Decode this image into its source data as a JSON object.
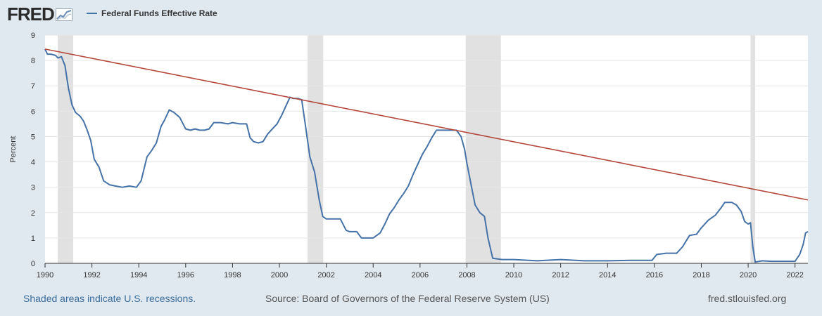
{
  "header": {
    "logo_text": "FRED",
    "logo_icon": "chart-line-icon"
  },
  "legend": {
    "series_label": "Federal Funds Effective Rate",
    "series_color": "#4572a7"
  },
  "footer": {
    "recession_note": "Shaded areas indicate U.S. recessions.",
    "source": "Source: Board of Governors of the Federal Reserve System (US)",
    "site": "fred.stlouisfed.org"
  },
  "colors": {
    "background": "#e1e9f0",
    "plot_background": "#ffffff",
    "recession_shade": "#e1e1e1",
    "series": "#4572a7",
    "trendline": "#b5473c",
    "gridline": "#e6e6e6"
  },
  "chart_data": {
    "type": "line",
    "title": "",
    "xlabel": "",
    "ylabel": "Percent",
    "xlim": [
      1990.0,
      2022.55
    ],
    "ylim": [
      0,
      9
    ],
    "yticks": [
      0,
      1,
      2,
      3,
      4,
      5,
      6,
      7,
      8,
      9
    ],
    "xticks": [
      1990,
      1992,
      1994,
      1996,
      1998,
      2000,
      2002,
      2004,
      2006,
      2008,
      2010,
      2012,
      2014,
      2016,
      2018,
      2020,
      2022
    ],
    "grid": "horizontal",
    "legend_position": "top-left",
    "recessions": [
      [
        1990.54,
        1991.2
      ],
      [
        2001.2,
        2001.87
      ],
      [
        2007.95,
        2009.45
      ],
      [
        2020.1,
        2020.3
      ]
    ],
    "trendline": {
      "x": [
        1990.0,
        2022.55
      ],
      "y": [
        8.45,
        2.5
      ]
    },
    "series": [
      {
        "name": "Federal Funds Effective Rate",
        "x": [
          1990.0,
          1990.1,
          1990.25,
          1990.45,
          1990.55,
          1990.7,
          1990.85,
          1991.0,
          1991.15,
          1991.3,
          1991.5,
          1991.65,
          1991.8,
          1991.95,
          1992.1,
          1992.3,
          1992.5,
          1992.75,
          1993.0,
          1993.3,
          1993.6,
          1993.9,
          1994.1,
          1994.35,
          1994.55,
          1994.75,
          1994.95,
          1995.1,
          1995.3,
          1995.5,
          1995.75,
          1996.0,
          1996.2,
          1996.4,
          1996.6,
          1996.8,
          1997.0,
          1997.2,
          1997.5,
          1997.8,
          1998.0,
          1998.3,
          1998.6,
          1998.75,
          1998.9,
          1999.1,
          1999.3,
          1999.5,
          1999.7,
          1999.9,
          2000.1,
          2000.3,
          2000.45,
          2000.6,
          2000.8,
          2000.95,
          2001.1,
          2001.3,
          2001.5,
          2001.7,
          2001.85,
          2002.0,
          2002.3,
          2002.6,
          2002.85,
          2003.0,
          2003.3,
          2003.5,
          2003.7,
          2004.0,
          2004.3,
          2004.5,
          2004.7,
          2004.9,
          2005.1,
          2005.3,
          2005.5,
          2005.7,
          2005.9,
          2006.1,
          2006.3,
          2006.5,
          2006.7,
          2007.0,
          2007.3,
          2007.55,
          2007.75,
          2007.9,
          2008.0,
          2008.2,
          2008.35,
          2008.55,
          2008.75,
          2008.9,
          2009.1,
          2009.5,
          2010.0,
          2011.0,
          2012.0,
          2013.0,
          2014.0,
          2015.0,
          2015.9,
          2016.1,
          2016.5,
          2016.95,
          2017.2,
          2017.5,
          2017.8,
          2018.0,
          2018.3,
          2018.6,
          2018.85,
          2019.0,
          2019.3,
          2019.5,
          2019.7,
          2019.85,
          2020.0,
          2020.1,
          2020.2,
          2020.3,
          2020.6,
          2021.0,
          2021.5,
          2022.0,
          2022.2,
          2022.35,
          2022.45,
          2022.55
        ],
        "y": [
          8.45,
          8.25,
          8.25,
          8.2,
          8.1,
          8.15,
          7.8,
          6.9,
          6.25,
          5.95,
          5.8,
          5.6,
          5.25,
          4.85,
          4.1,
          3.8,
          3.25,
          3.1,
          3.05,
          3.0,
          3.05,
          3.0,
          3.25,
          4.2,
          4.45,
          4.75,
          5.4,
          5.65,
          6.05,
          5.95,
          5.75,
          5.3,
          5.25,
          5.3,
          5.25,
          5.25,
          5.3,
          5.55,
          5.55,
          5.5,
          5.55,
          5.5,
          5.5,
          4.95,
          4.8,
          4.75,
          4.8,
          5.1,
          5.3,
          5.5,
          5.85,
          6.25,
          6.55,
          6.5,
          6.5,
          6.45,
          5.5,
          4.2,
          3.6,
          2.5,
          1.85,
          1.75,
          1.75,
          1.75,
          1.3,
          1.25,
          1.25,
          1.0,
          1.0,
          1.0,
          1.2,
          1.55,
          1.95,
          2.2,
          2.5,
          2.75,
          3.05,
          3.5,
          3.9,
          4.3,
          4.6,
          4.95,
          5.25,
          5.25,
          5.25,
          5.25,
          5.0,
          4.5,
          3.95,
          3.0,
          2.3,
          2.0,
          1.85,
          1.0,
          0.2,
          0.15,
          0.15,
          0.1,
          0.15,
          0.1,
          0.1,
          0.12,
          0.12,
          0.35,
          0.4,
          0.4,
          0.65,
          1.1,
          1.15,
          1.4,
          1.7,
          1.9,
          2.2,
          2.4,
          2.4,
          2.3,
          2.05,
          1.65,
          1.55,
          1.6,
          0.65,
          0.05,
          0.1,
          0.08,
          0.08,
          0.08,
          0.35,
          0.75,
          1.2,
          1.25
        ]
      }
    ]
  }
}
